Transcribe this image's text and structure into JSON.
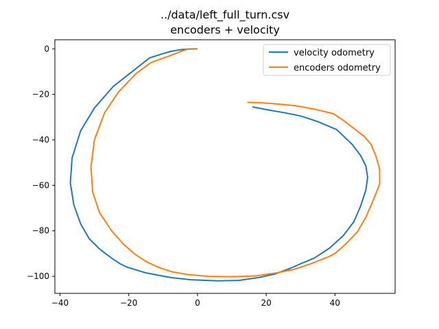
{
  "chart_data": {
    "type": "line",
    "title": "../data/left_full_turn.csv",
    "subtitle": "encoders + velocity",
    "xlabel": "",
    "ylabel": "",
    "xlim": [
      -41.5,
      57.5
    ],
    "ylim": [
      -107.5,
      4.0
    ],
    "xticks": [
      -40,
      -20,
      0,
      20,
      40
    ],
    "yticks": [
      0,
      -20,
      -40,
      -60,
      -80,
      -100
    ],
    "xtick_labels": [
      "−40",
      "−20",
      "0",
      "20",
      "40"
    ],
    "ytick_labels": [
      "0",
      "−20",
      "−40",
      "−60",
      "−80",
      "−100"
    ],
    "grid": false,
    "legend_position": "top-right",
    "series": [
      {
        "name": "velocity odometry",
        "color": "#1f77b4",
        "points": [
          [
            0,
            0
          ],
          [
            -1.5,
            0
          ],
          [
            -3,
            -0.1
          ],
          [
            -5.5,
            -0.5
          ],
          [
            -8,
            -1.2
          ],
          [
            -10.5,
            -2.3
          ],
          [
            -14,
            -4
          ],
          [
            -19,
            -10
          ],
          [
            -24.5,
            -16.5
          ],
          [
            -30,
            -26
          ],
          [
            -34,
            -36
          ],
          [
            -36.5,
            -48
          ],
          [
            -37,
            -59
          ],
          [
            -36,
            -68.5
          ],
          [
            -34,
            -77
          ],
          [
            -31.5,
            -83.5
          ],
          [
            -28.5,
            -88
          ],
          [
            -25,
            -92
          ],
          [
            -22.5,
            -94.5
          ],
          [
            -20.5,
            -96
          ],
          [
            -15,
            -98.5
          ],
          [
            -8,
            -100.5
          ],
          [
            -2,
            -101.5
          ],
          [
            6,
            -102
          ],
          [
            12,
            -101.8
          ],
          [
            18,
            -100.5
          ],
          [
            22.5,
            -99
          ],
          [
            27,
            -96.5
          ],
          [
            30,
            -94.5
          ],
          [
            34,
            -92
          ],
          [
            38.5,
            -87.5
          ],
          [
            42.5,
            -82
          ],
          [
            45.5,
            -76
          ],
          [
            47.5,
            -69
          ],
          [
            49,
            -62
          ],
          [
            49.5,
            -56.5
          ],
          [
            49,
            -51.5
          ],
          [
            47.5,
            -47
          ],
          [
            45,
            -42
          ],
          [
            40.5,
            -35.5
          ],
          [
            35,
            -32
          ],
          [
            30,
            -29.5
          ],
          [
            25,
            -28
          ],
          [
            20,
            -26.7
          ],
          [
            16,
            -25.5
          ]
        ]
      },
      {
        "name": "encoders odometry",
        "color": "#ff7f0e",
        "points": [
          [
            0,
            0
          ],
          [
            -3,
            -0.2
          ],
          [
            -5,
            -1.2
          ],
          [
            -8,
            -3
          ],
          [
            -13.5,
            -6
          ],
          [
            -18,
            -11
          ],
          [
            -23,
            -19
          ],
          [
            -27,
            -28
          ],
          [
            -30,
            -40
          ],
          [
            -31,
            -52
          ],
          [
            -30.5,
            -63
          ],
          [
            -28.5,
            -72
          ],
          [
            -25,
            -80
          ],
          [
            -21.5,
            -86
          ],
          [
            -18,
            -90.5
          ],
          [
            -15,
            -93.5
          ],
          [
            -11.5,
            -96
          ],
          [
            -7.5,
            -98
          ],
          [
            -3,
            -99.2
          ],
          [
            3,
            -100
          ],
          [
            10,
            -100.2
          ],
          [
            17,
            -99.8
          ],
          [
            23,
            -98.5
          ],
          [
            28,
            -97
          ],
          [
            33,
            -94.5
          ],
          [
            38,
            -91.5
          ],
          [
            40,
            -90
          ],
          [
            43,
            -86
          ],
          [
            46.5,
            -80.5
          ],
          [
            49,
            -74
          ],
          [
            51,
            -67
          ],
          [
            53,
            -59.5
          ],
          [
            53,
            -53
          ],
          [
            52,
            -47.5
          ],
          [
            50.5,
            -42
          ],
          [
            48.5,
            -38.5
          ],
          [
            45.5,
            -35
          ],
          [
            42.5,
            -31.5
          ],
          [
            39.5,
            -28.5
          ],
          [
            34,
            -26.5
          ],
          [
            28.5,
            -25
          ],
          [
            23,
            -24.2
          ],
          [
            18.5,
            -23.7
          ],
          [
            14.5,
            -23.5
          ]
        ]
      }
    ]
  }
}
